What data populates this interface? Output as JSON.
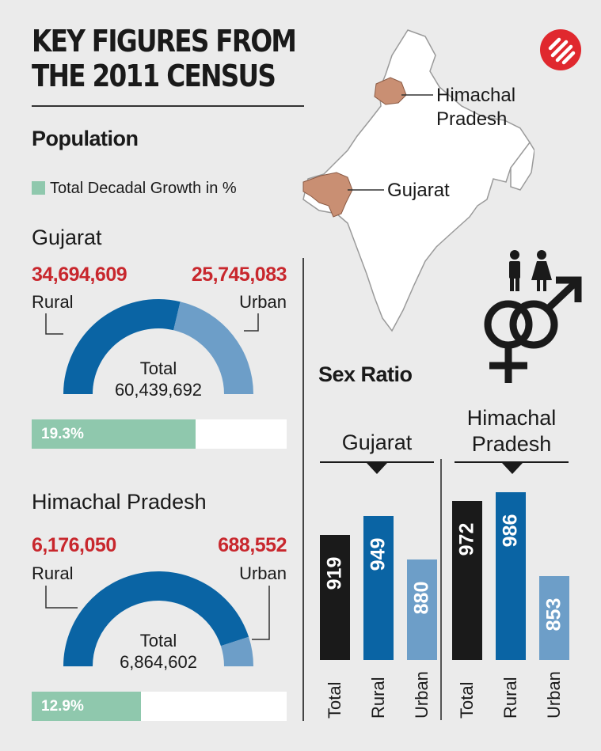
{
  "title": {
    "line1": "KEY FIGURES FROM",
    "line2": "THE 2011 CENSUS"
  },
  "population": {
    "heading": "Population",
    "legend_label": "Total Decadal Growth in %",
    "legend_color": "#8fc8ad"
  },
  "map": {
    "label_himachal_1": "Himachal",
    "label_himachal_2": "Pradesh",
    "label_gujarat": "Gujarat",
    "highlight_color": "#c98f73"
  },
  "colors": {
    "rural": "#0a64a4",
    "urban": "#6d9ec8",
    "total": "#1a1a1a",
    "growth": "#8fc8ad",
    "accent": "#c8272d"
  },
  "sex_ratio_heading": "Sex Ratio",
  "chart_data": [
    {
      "type": "pie",
      "title": "Gujarat",
      "labels": [
        "Rural",
        "Urban"
      ],
      "values": [
        34694609,
        25745083
      ],
      "display_values": [
        "34,694,609",
        "25,745,083"
      ],
      "total_label": "Total",
      "total": "60,439,692",
      "growth_value": 19.3,
      "growth_label": "19.3%"
    },
    {
      "type": "pie",
      "title": "Himachal Pradesh",
      "labels": [
        "Rural",
        "Urban"
      ],
      "values": [
        6176050,
        688552
      ],
      "display_values": [
        "6,176,050",
        "688,552"
      ],
      "total_label": "Total",
      "total": "6,864,602",
      "growth_value": 12.9,
      "growth_label": "12.9%"
    },
    {
      "type": "bar",
      "title": "Sex Ratio",
      "groups": [
        {
          "name": "Gujarat",
          "categories": [
            "Total",
            "Rural",
            "Urban"
          ],
          "values": [
            919,
            949,
            880
          ]
        },
        {
          "name_line1": "Himachal",
          "name_line2": "Pradesh",
          "categories": [
            "Total",
            "Rural",
            "Urban"
          ],
          "values": [
            972,
            986,
            853
          ]
        }
      ],
      "grid": false
    }
  ]
}
